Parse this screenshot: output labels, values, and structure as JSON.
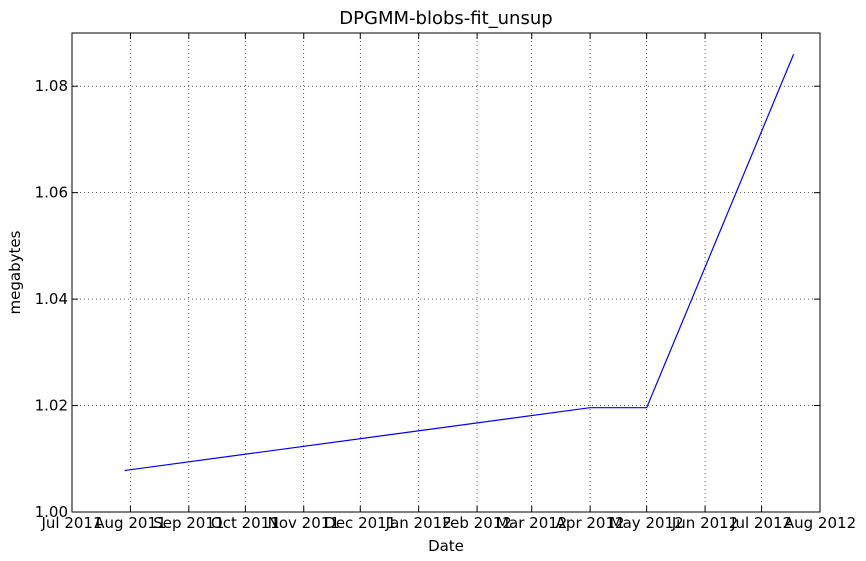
{
  "chart_data": {
    "type": "line",
    "title": "DPGMM-blobs-fit_unsup",
    "xlabel": "Date",
    "ylabel": "megabytes",
    "ylim": [
      1.0,
      1.09
    ],
    "xlim": [
      "2011-07-01",
      "2012-08-01"
    ],
    "yticks": [
      1.0,
      1.02,
      1.04,
      1.06,
      1.08
    ],
    "ytick_labels": [
      "1.00",
      "1.02",
      "1.04",
      "1.06",
      "1.08"
    ],
    "xticks": [
      "2011-07-01",
      "2011-08-01",
      "2011-09-01",
      "2011-10-01",
      "2011-11-01",
      "2011-12-01",
      "2012-01-01",
      "2012-02-01",
      "2012-03-01",
      "2012-04-01",
      "2012-05-01",
      "2012-06-01",
      "2012-07-01",
      "2012-08-01"
    ],
    "xtick_labels": [
      "Jul 2011",
      "Aug 2011",
      "Sep 2011",
      "Oct 2011",
      "Nov 2011",
      "Dec 2011",
      "Jan 2012",
      "Feb 2012",
      "Mar 2012",
      "Apr 2012",
      "May 2012",
      "Jun 2012",
      "Jul 2012",
      "Aug 2012"
    ],
    "grid": true,
    "series": [
      {
        "color": "#0000ff",
        "x": [
          "2011-07-29",
          "2012-04-01",
          "2012-05-01",
          "2012-07-18"
        ],
        "y": [
          1.0078,
          1.0196,
          1.0196,
          1.086
        ]
      }
    ]
  }
}
